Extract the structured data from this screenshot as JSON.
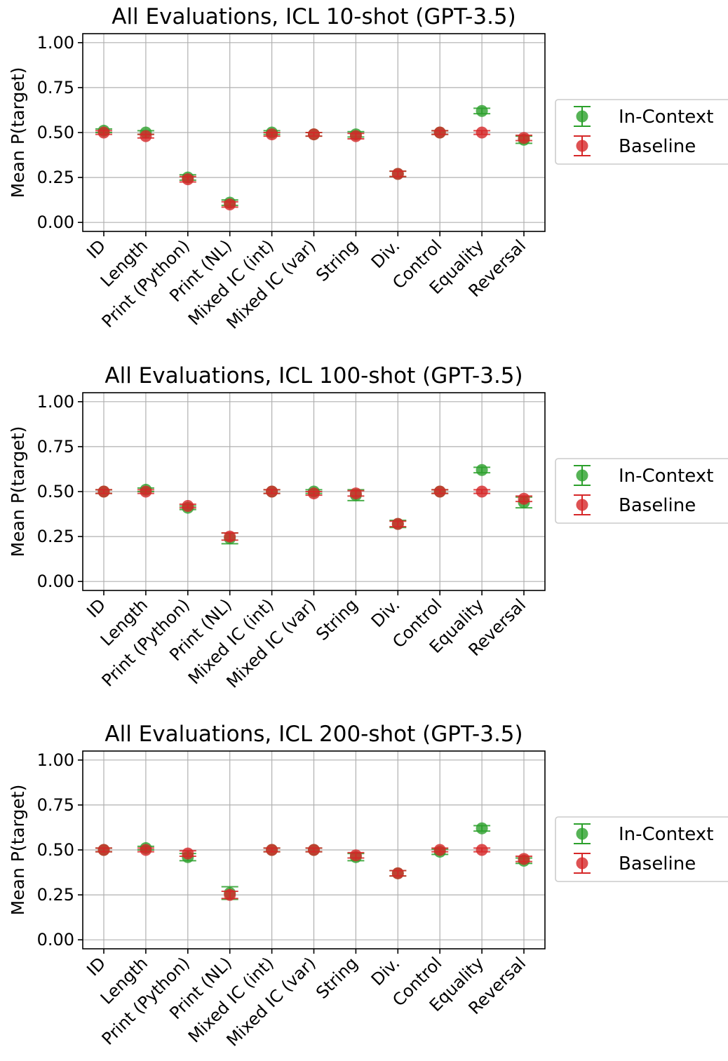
{
  "colors": {
    "in_context": "#2ca02c",
    "baseline": "#d62728"
  },
  "chart_data": [
    {
      "type": "scatter",
      "title": "All Evaluations, ICL 10-shot (GPT-3.5)",
      "xlabel": "",
      "ylabel": "Mean P(target)",
      "categories": [
        "ID",
        "Length",
        "Print (Python)",
        "Print (NL)",
        "Mixed IC (int)",
        "Mixed IC (var)",
        "String",
        "Div.",
        "Control",
        "Equality",
        "Reversal"
      ],
      "ylim": [
        -0.05,
        1.05
      ],
      "yticks": [
        "0.00",
        "0.25",
        "0.50",
        "0.75",
        "1.00"
      ],
      "grid": true,
      "legend_position": "right-outside",
      "series": [
        {
          "name": "In-Context",
          "values": [
            0.51,
            0.5,
            0.25,
            0.11,
            0.5,
            0.49,
            0.49,
            0.27,
            0.5,
            0.62,
            0.46
          ],
          "err": [
            0.01,
            0.01,
            0.015,
            0.015,
            0.01,
            0.01,
            0.015,
            0.015,
            0.01,
            0.015,
            0.02
          ]
        },
        {
          "name": "Baseline",
          "values": [
            0.5,
            0.48,
            0.24,
            0.1,
            0.49,
            0.49,
            0.48,
            0.27,
            0.5,
            0.5,
            0.47
          ],
          "err": [
            0.01,
            0.01,
            0.015,
            0.015,
            0.01,
            0.01,
            0.015,
            0.015,
            0.01,
            0.01,
            0.015
          ]
        }
      ]
    },
    {
      "type": "scatter",
      "title": "All Evaluations, ICL 100-shot (GPT-3.5)",
      "xlabel": "",
      "ylabel": "Mean P(target)",
      "categories": [
        "ID",
        "Length",
        "Print (Python)",
        "Print (NL)",
        "Mixed IC (int)",
        "Mixed IC (var)",
        "String",
        "Div.",
        "Control",
        "Equality",
        "Reversal"
      ],
      "ylim": [
        -0.05,
        1.05
      ],
      "yticks": [
        "0.00",
        "0.25",
        "0.50",
        "0.75",
        "1.00"
      ],
      "grid": true,
      "legend_position": "right-outside",
      "series": [
        {
          "name": "In-Context",
          "values": [
            0.5,
            0.51,
            0.41,
            0.24,
            0.5,
            0.5,
            0.48,
            0.32,
            0.5,
            0.62,
            0.44
          ],
          "err": [
            0.01,
            0.01,
            0.01,
            0.03,
            0.01,
            0.01,
            0.03,
            0.02,
            0.01,
            0.015,
            0.03
          ]
        },
        {
          "name": "Baseline",
          "values": [
            0.5,
            0.5,
            0.42,
            0.25,
            0.5,
            0.49,
            0.49,
            0.32,
            0.5,
            0.5,
            0.46
          ],
          "err": [
            0.01,
            0.01,
            0.01,
            0.02,
            0.01,
            0.01,
            0.015,
            0.015,
            0.01,
            0.01,
            0.015
          ]
        }
      ]
    },
    {
      "type": "scatter",
      "title": "All Evaluations, ICL 200-shot (GPT-3.5)",
      "xlabel": "",
      "ylabel": "Mean P(target)",
      "categories": [
        "ID",
        "Length",
        "Print (Python)",
        "Print (NL)",
        "Mixed IC (int)",
        "Mixed IC (var)",
        "String",
        "Div.",
        "Control",
        "Equality",
        "Reversal"
      ],
      "ylim": [
        -0.05,
        1.05
      ],
      "yticks": [
        "0.00",
        "0.25",
        "0.50",
        "0.75",
        "1.00"
      ],
      "grid": true,
      "legend_position": "right-outside",
      "series": [
        {
          "name": "In-Context",
          "values": [
            0.5,
            0.51,
            0.46,
            0.26,
            0.5,
            0.5,
            0.46,
            0.37,
            0.49,
            0.62,
            0.44
          ],
          "err": [
            0.01,
            0.01,
            0.02,
            0.035,
            0.01,
            0.01,
            0.02,
            0.015,
            0.015,
            0.015,
            0.015
          ]
        },
        {
          "name": "Baseline",
          "values": [
            0.5,
            0.5,
            0.48,
            0.25,
            0.5,
            0.5,
            0.47,
            0.37,
            0.5,
            0.5,
            0.45
          ],
          "err": [
            0.01,
            0.01,
            0.015,
            0.02,
            0.01,
            0.01,
            0.015,
            0.015,
            0.01,
            0.01,
            0.015
          ]
        }
      ]
    }
  ]
}
